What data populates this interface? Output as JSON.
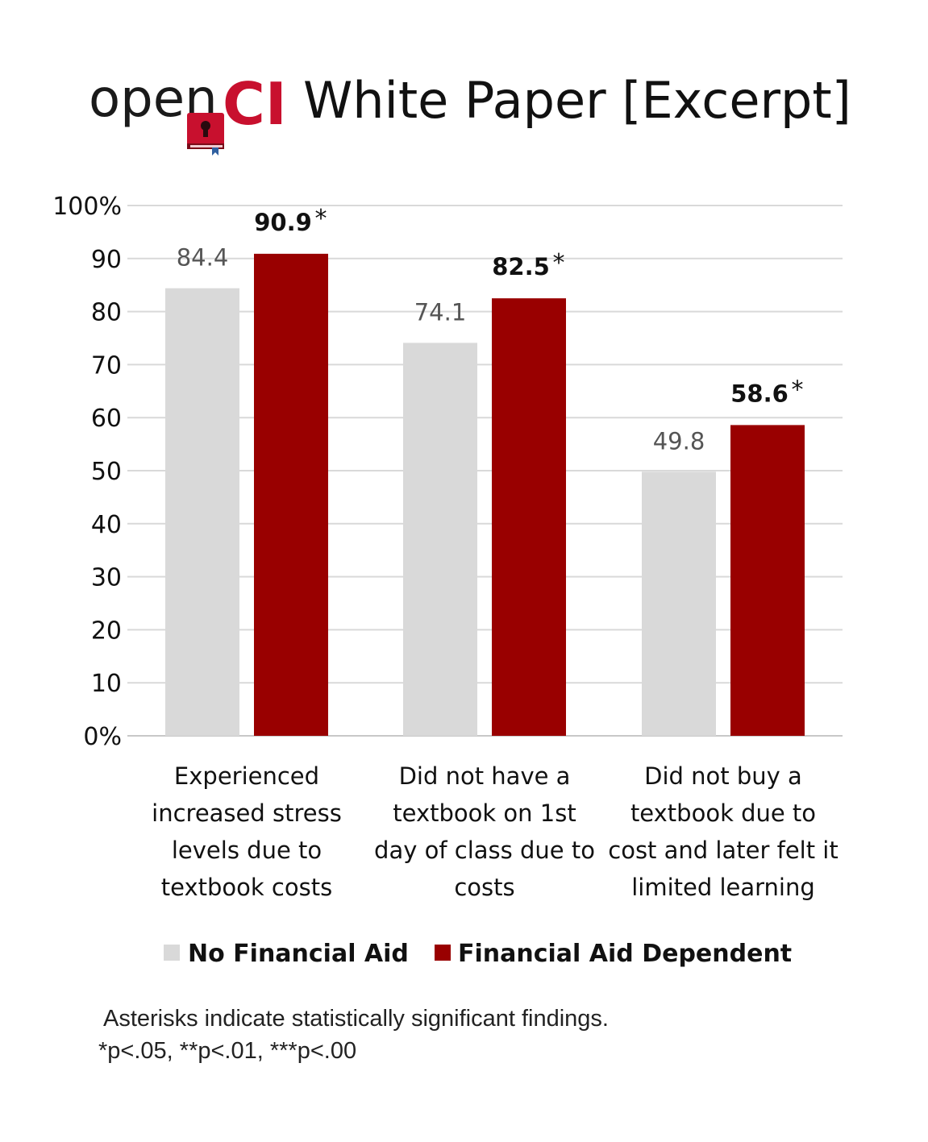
{
  "header": {
    "logo_open": "open",
    "logo_ci": "CI",
    "title": "White Paper [Excerpt]"
  },
  "colors": {
    "no_aid": "#d9d9d9",
    "aid": "#990000",
    "grid": "#d9d9d9",
    "logo_accent": "#c8102e"
  },
  "chart_data": {
    "type": "bar",
    "title": "",
    "xlabel": "",
    "ylabel": "",
    "ylim": [
      0,
      100
    ],
    "yticks": [
      "0%",
      "10",
      "20",
      "30",
      "40",
      "50",
      "60",
      "70",
      "80",
      "90",
      "100%"
    ],
    "grid": true,
    "legend_position": "bottom",
    "categories": [
      [
        "Experienced",
        "increased stress",
        "levels due to",
        "textbook costs"
      ],
      [
        "Did not have a",
        "textbook on 1st",
        "day of class due to",
        "costs"
      ],
      [
        "Did not buy a",
        "textbook due to",
        "cost and later felt it",
        "limited learning"
      ]
    ],
    "series": [
      {
        "name": "No Financial Aid",
        "values": [
          84.4,
          74.1,
          49.8
        ],
        "labels": [
          "84.4",
          "74.1",
          "49.8"
        ]
      },
      {
        "name": "Financial Aid Dependent",
        "values": [
          90.9,
          82.5,
          58.6
        ],
        "labels": [
          "90.9",
          "82.5",
          "58.6"
        ],
        "significance": [
          "*",
          "*",
          "*"
        ]
      }
    ]
  },
  "notes": {
    "line1": "Asterisks indicate statistically significant findings.",
    "line2": "*p<.05, **p<.01, ***p<.00"
  }
}
